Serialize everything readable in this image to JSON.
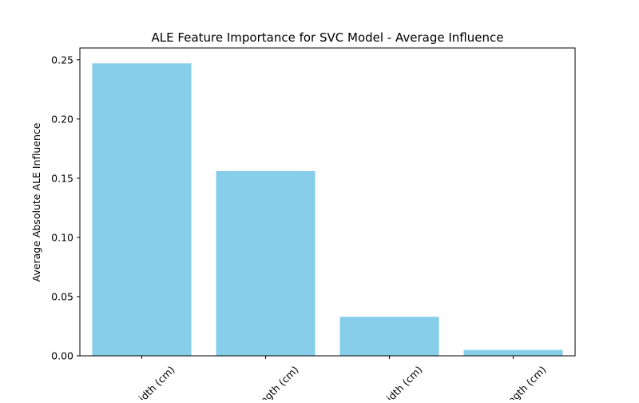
{
  "chart_data": {
    "type": "bar",
    "title": "ALE Feature Importance for SVC Model - Average Influence",
    "xlabel": "",
    "ylabel": "Average Absolute ALE Influence",
    "categories": [
      "petal width (cm)",
      "petal length (cm)",
      "sepal width (cm)",
      "sepal length (cm)"
    ],
    "visible_tick_labels": [
      "idth (cm)",
      "ngth (cm)",
      "idth (cm)",
      "ngth (cm)"
    ],
    "values": [
      0.247,
      0.156,
      0.033,
      0.005
    ],
    "ylim": [
      0,
      0.26
    ],
    "yticks": [
      0.0,
      0.05,
      0.1,
      0.15,
      0.2,
      0.25
    ],
    "ytick_labels": [
      "0.00",
      "0.05",
      "0.10",
      "0.15",
      "0.20",
      "0.25"
    ],
    "bar_color": "#87ceeb",
    "x_tick_rotation_deg": 45,
    "grid": false,
    "legend": "none"
  }
}
